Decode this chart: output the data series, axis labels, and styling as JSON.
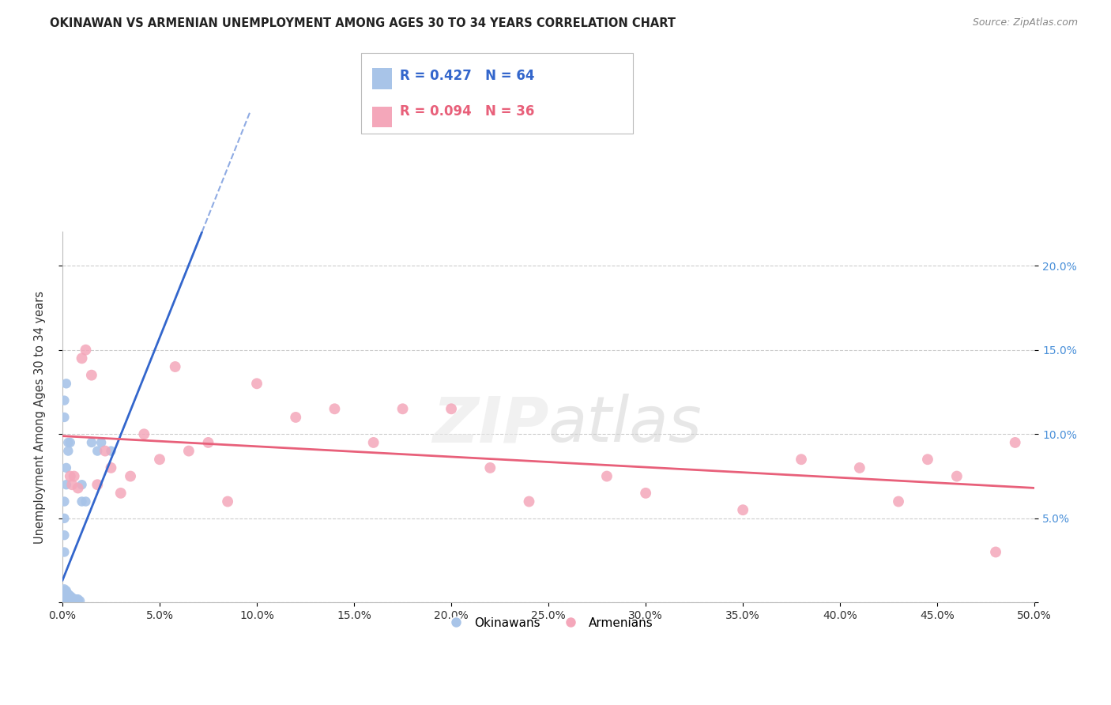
{
  "title": "OKINAWAN VS ARMENIAN UNEMPLOYMENT AMONG AGES 30 TO 34 YEARS CORRELATION CHART",
  "source": "Source: ZipAtlas.com",
  "ylabel": "Unemployment Among Ages 30 to 34 years",
  "xlim": [
    0,
    0.5
  ],
  "ylim": [
    0,
    0.22
  ],
  "xticks": [
    0.0,
    0.05,
    0.1,
    0.15,
    0.2,
    0.25,
    0.3,
    0.35,
    0.4,
    0.45,
    0.5
  ],
  "xticklabels": [
    "0.0%",
    "5.0%",
    "10.0%",
    "15.0%",
    "20.0%",
    "25.0%",
    "30.0%",
    "35.0%",
    "40.0%",
    "45.0%",
    "50.0%"
  ],
  "yticks": [
    0.0,
    0.05,
    0.1,
    0.15,
    0.2
  ],
  "yticklabels_right": [
    "",
    "5.0%",
    "10.0%",
    "15.0%",
    "20.0%"
  ],
  "watermark": "ZIPatlas",
  "okinawan_color": "#a8c4e8",
  "armenian_color": "#f4a7ba",
  "okinawan_line_color": "#3366cc",
  "armenian_line_color": "#e8607a",
  "legend_R_okinawan": "R = 0.427",
  "legend_N_okinawan": "N = 64",
  "legend_R_armenian": "R = 0.094",
  "legend_N_armenian": "N = 36",
  "okinawan_x": [
    0.001,
    0.001,
    0.001,
    0.001,
    0.001,
    0.001,
    0.001,
    0.001,
    0.001,
    0.001,
    0.002,
    0.002,
    0.002,
    0.002,
    0.002,
    0.002,
    0.002,
    0.002,
    0.002,
    0.002,
    0.003,
    0.003,
    0.003,
    0.003,
    0.003,
    0.003,
    0.003,
    0.003,
    0.004,
    0.004,
    0.004,
    0.004,
    0.004,
    0.005,
    0.005,
    0.005,
    0.005,
    0.006,
    0.006,
    0.006,
    0.007,
    0.007,
    0.008,
    0.008,
    0.009,
    0.01,
    0.01,
    0.012,
    0.001,
    0.001,
    0.001,
    0.001,
    0.002,
    0.002,
    0.003,
    0.003,
    0.004,
    0.015,
    0.018,
    0.02,
    0.025,
    0.001,
    0.001,
    0.002
  ],
  "okinawan_y": [
    0.001,
    0.002,
    0.003,
    0.004,
    0.005,
    0.006,
    0.007,
    0.008,
    0.001,
    0.002,
    0.001,
    0.002,
    0.003,
    0.004,
    0.005,
    0.006,
    0.007,
    0.001,
    0.002,
    0.003,
    0.001,
    0.002,
    0.003,
    0.004,
    0.005,
    0.001,
    0.002,
    0.003,
    0.001,
    0.002,
    0.003,
    0.004,
    0.001,
    0.001,
    0.002,
    0.003,
    0.001,
    0.001,
    0.002,
    0.001,
    0.001,
    0.002,
    0.001,
    0.002,
    0.001,
    0.06,
    0.07,
    0.06,
    0.03,
    0.04,
    0.05,
    0.06,
    0.07,
    0.08,
    0.09,
    0.095,
    0.095,
    0.095,
    0.09,
    0.095,
    0.09,
    0.11,
    0.12,
    0.13
  ],
  "armenian_x": [
    0.004,
    0.005,
    0.006,
    0.008,
    0.01,
    0.012,
    0.015,
    0.018,
    0.022,
    0.025,
    0.03,
    0.035,
    0.042,
    0.05,
    0.058,
    0.065,
    0.075,
    0.085,
    0.1,
    0.12,
    0.14,
    0.16,
    0.175,
    0.2,
    0.22,
    0.24,
    0.28,
    0.3,
    0.35,
    0.38,
    0.41,
    0.43,
    0.445,
    0.46,
    0.48,
    0.49
  ],
  "armenian_y": [
    0.075,
    0.07,
    0.075,
    0.068,
    0.145,
    0.15,
    0.135,
    0.07,
    0.09,
    0.08,
    0.065,
    0.075,
    0.1,
    0.085,
    0.14,
    0.09,
    0.095,
    0.06,
    0.13,
    0.11,
    0.115,
    0.095,
    0.115,
    0.115,
    0.08,
    0.06,
    0.075,
    0.065,
    0.055,
    0.085,
    0.08,
    0.06,
    0.085,
    0.075,
    0.03,
    0.095
  ]
}
